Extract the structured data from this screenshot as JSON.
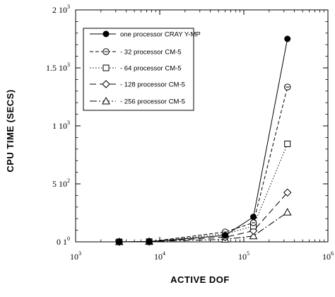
{
  "chart_data": {
    "type": "line",
    "xlabel": "ACTIVE DOF",
    "ylabel": "CPU TIME (SECS)",
    "x_scale": "log",
    "xlim": [
      1000,
      1000000
    ],
    "ylim": [
      0,
      2000
    ],
    "x_ticks": [
      {
        "value": 1000,
        "base": "10",
        "exp": "3"
      },
      {
        "value": 10000,
        "base": "10",
        "exp": "4"
      },
      {
        "value": 100000,
        "base": "10",
        "exp": "5"
      },
      {
        "value": 1000000,
        "base": "10",
        "exp": "6"
      }
    ],
    "y_ticks": [
      {
        "value": 0,
        "mant": "0",
        "base": "1",
        "exp": "0"
      },
      {
        "value": 500,
        "mant": "5",
        "base": "10",
        "exp": "2"
      },
      {
        "value": 1000,
        "mant": "1",
        "base": "10",
        "exp": "3"
      },
      {
        "value": 1500,
        "mant": "1.5",
        "base": "10",
        "exp": "3"
      },
      {
        "value": 2000,
        "mant": "2",
        "base": "10",
        "exp": "3"
      }
    ],
    "legend_position": "top-left",
    "grid": false,
    "series": [
      {
        "name": "one processor CRAY Y-MP",
        "marker": "filled-circle",
        "dash": "none",
        "x": [
          3300,
          7500,
          60000,
          130000,
          330000
        ],
        "y": [
          0,
          2,
          55,
          215,
          1750
        ]
      },
      {
        "name": "32 processor CM-5",
        "marker": "circle-line",
        "dash": "5,3",
        "x": [
          3300,
          7500,
          60000,
          130000,
          330000
        ],
        "y": [
          0,
          2,
          85,
          165,
          1335
        ]
      },
      {
        "name": "64 processor CM-5",
        "marker": "square",
        "dash": "1.5,2.5",
        "x": [
          3300,
          7500,
          60000,
          130000,
          330000
        ],
        "y": [
          0,
          2,
          68,
          135,
          845
        ]
      },
      {
        "name": "128 processor CM-5",
        "marker": "diamond",
        "dash": "9,5",
        "x": [
          3300,
          7500,
          60000,
          130000,
          330000
        ],
        "y": [
          0,
          2,
          40,
          95,
          425
        ]
      },
      {
        "name": "256 processor CM-5",
        "marker": "triangle",
        "dash": "10,3,2,3",
        "x": [
          3300,
          7500,
          60000,
          130000,
          330000
        ],
        "y": [
          0,
          2,
          22,
          50,
          255
        ]
      }
    ]
  }
}
